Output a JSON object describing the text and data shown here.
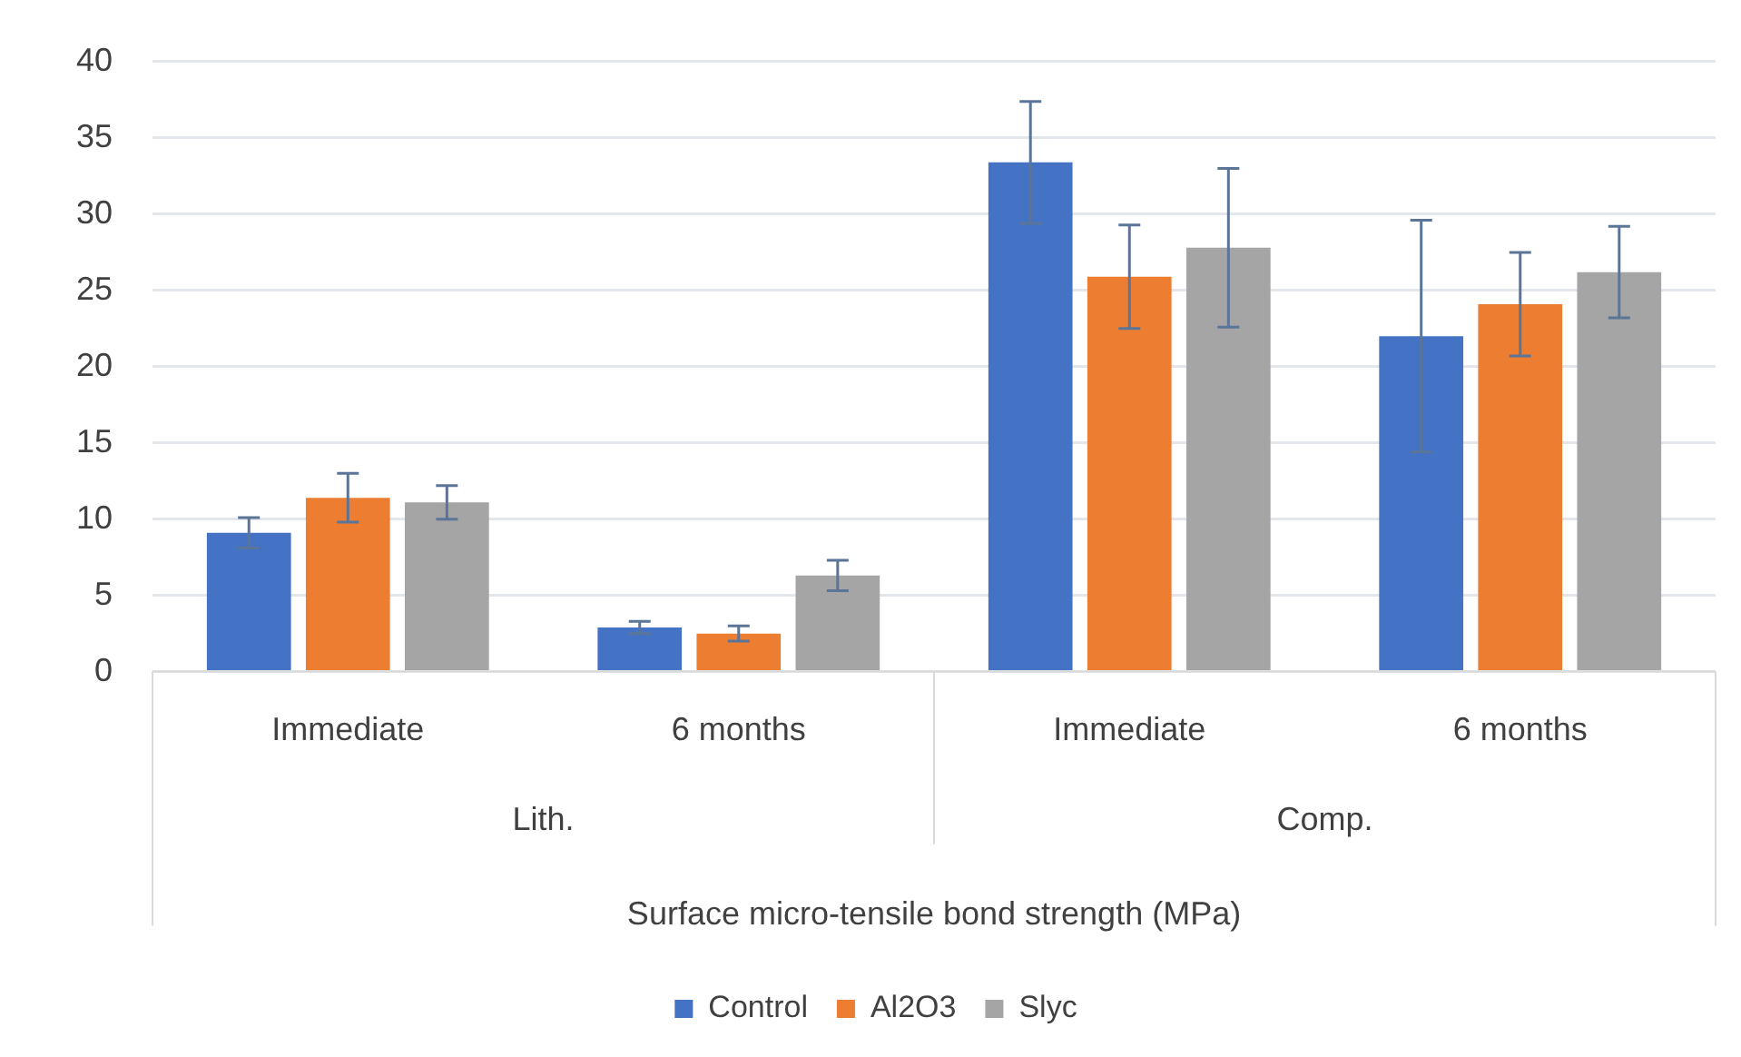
{
  "chart_data": {
    "type": "bar",
    "xlabel": "Surface micro-tensile bond strength (MPa)",
    "categories": [
      "Immediate",
      "6 months",
      "Immediate",
      "6 months"
    ],
    "annotations": [
      "Lith.",
      "Comp."
    ],
    "series": [
      {
        "name": "Control",
        "color": "#4472c4",
        "values": [
          9.1,
          2.9,
          33.4,
          22.0
        ],
        "errors": [
          1.0,
          0.4,
          4.0,
          7.6
        ]
      },
      {
        "name": "Al2O3",
        "color": "#ed7d31",
        "values": [
          11.4,
          2.5,
          25.9,
          24.1
        ],
        "errors": [
          1.6,
          0.5,
          3.4,
          3.4
        ]
      },
      {
        "name": "Slyc",
        "color": "#a5a5a5",
        "values": [
          11.1,
          6.3,
          27.8,
          26.2
        ],
        "errors": [
          1.1,
          1.0,
          5.2,
          3.0
        ]
      }
    ],
    "ylim": [
      0,
      40
    ],
    "yticks": [
      0,
      5,
      10,
      15,
      20,
      25,
      30,
      35,
      40
    ],
    "grid": "y",
    "legend": "bottom"
  }
}
